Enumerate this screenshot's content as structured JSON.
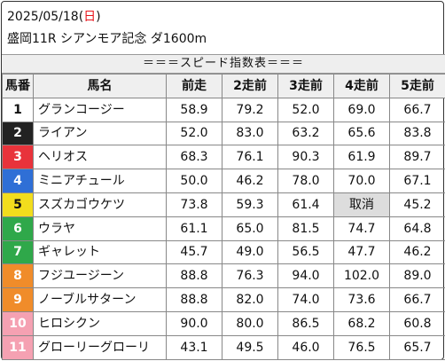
{
  "header": {
    "date": "2025/05/18",
    "dow_open": "(",
    "dow": "日",
    "dow_close": ")",
    "race": "盛岡11R シアンモア記念 ダ1600m"
  },
  "subtitle": "＝＝＝スピード指数表＝＝＝",
  "columns": [
    "馬番",
    "馬名",
    "前走",
    "2走前",
    "3走前",
    "4走前",
    "5走前"
  ],
  "frame_colors": {
    "1": {
      "bg": "#ffffff",
      "fg": "#111111"
    },
    "2": {
      "bg": "#222222",
      "fg": "#ffffff"
    },
    "3": {
      "bg": "#e8333b",
      "fg": "#ffffff"
    },
    "4": {
      "bg": "#2f6fd6",
      "fg": "#ffffff"
    },
    "5": {
      "bg": "#f2dd1d",
      "fg": "#111111"
    },
    "6": {
      "bg": "#2fa84a",
      "fg": "#ffffff"
    },
    "7": {
      "bg": "#f08c2a",
      "fg": "#ffffff"
    },
    "8": {
      "bg": "#f5a1b2",
      "fg": "#ffffff"
    }
  },
  "rows": [
    {
      "num": "1",
      "frame": "1",
      "name": "グランコージー",
      "v": [
        "58.9",
        "79.2",
        "52.0",
        "69.0",
        "66.7"
      ]
    },
    {
      "num": "2",
      "frame": "2",
      "name": "ライアン",
      "v": [
        "52.0",
        "83.0",
        "63.2",
        "65.6",
        "83.8"
      ]
    },
    {
      "num": "3",
      "frame": "3",
      "name": "ヘリオス",
      "v": [
        "68.3",
        "76.1",
        "90.3",
        "61.9",
        "89.7"
      ]
    },
    {
      "num": "4",
      "frame": "4",
      "name": "ミニアチュール",
      "v": [
        "50.0",
        "46.2",
        "78.0",
        "70.0",
        "67.1"
      ]
    },
    {
      "num": "5",
      "frame": "5",
      "name": "スズカゴウケツ",
      "v": [
        "73.8",
        "59.3",
        "61.4",
        "取消",
        "45.2"
      ]
    },
    {
      "num": "6",
      "frame": "6",
      "name": "ウラヤ",
      "v": [
        "61.1",
        "65.0",
        "81.5",
        "74.7",
        "64.8"
      ]
    },
    {
      "num": "7",
      "frame": "6",
      "name": "ギャレット",
      "v": [
        "45.7",
        "49.0",
        "56.5",
        "47.7",
        "46.2"
      ]
    },
    {
      "num": "8",
      "frame": "7",
      "name": "フジユージーン",
      "v": [
        "88.8",
        "76.3",
        "94.0",
        "102.0",
        "89.0"
      ]
    },
    {
      "num": "9",
      "frame": "7",
      "name": "ノーブルサターン",
      "v": [
        "88.8",
        "82.0",
        "74.0",
        "73.6",
        "66.7"
      ]
    },
    {
      "num": "10",
      "frame": "8",
      "name": "ヒロシクン",
      "v": [
        "90.0",
        "80.0",
        "86.5",
        "68.2",
        "60.8"
      ]
    },
    {
      "num": "11",
      "frame": "8",
      "name": "グローリーグローリ",
      "v": [
        "43.1",
        "49.5",
        "46.0",
        "76.5",
        "65.7"
      ]
    }
  ]
}
